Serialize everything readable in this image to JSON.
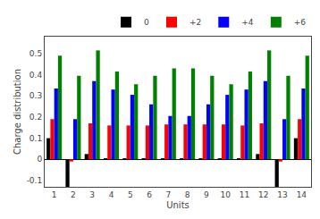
{
  "chart_data": {
    "type": "bar",
    "xlabel": "Units",
    "ylabel": "Charge distribution",
    "categories": [
      "1",
      "2",
      "3",
      "4",
      "5",
      "6",
      "7",
      "8",
      "9",
      "10",
      "11",
      "12",
      "13",
      "14"
    ],
    "series": [
      {
        "name": "0",
        "color": "black",
        "values": [
          0.1,
          -0.13,
          0.025,
          0.005,
          0.005,
          0.005,
          0.005,
          0.005,
          0.005,
          0.005,
          0.005,
          0.025,
          -0.13,
          0.1
        ]
      },
      {
        "name": "+2",
        "color": "red",
        "values": [
          0.19,
          -0.01,
          0.17,
          0.16,
          0.16,
          0.16,
          0.165,
          0.165,
          0.165,
          0.165,
          0.16,
          0.17,
          -0.01,
          0.19
        ]
      },
      {
        "name": "+4",
        "color": "blue",
        "values": [
          0.335,
          0.19,
          0.37,
          0.33,
          0.305,
          0.26,
          0.205,
          0.205,
          0.26,
          0.305,
          0.33,
          0.37,
          0.19,
          0.335
        ]
      },
      {
        "name": "+6",
        "color": "green",
        "values": [
          0.49,
          0.395,
          0.515,
          0.415,
          0.355,
          0.395,
          0.43,
          0.43,
          0.395,
          0.355,
          0.415,
          0.515,
          0.395,
          0.49
        ]
      }
    ],
    "ylim": [
      -0.13,
      0.58
    ],
    "yticks": [
      -0.1,
      0,
      0.1,
      0.2,
      0.3,
      0.4,
      0.5
    ],
    "legend": "upper right",
    "grid": false
  }
}
